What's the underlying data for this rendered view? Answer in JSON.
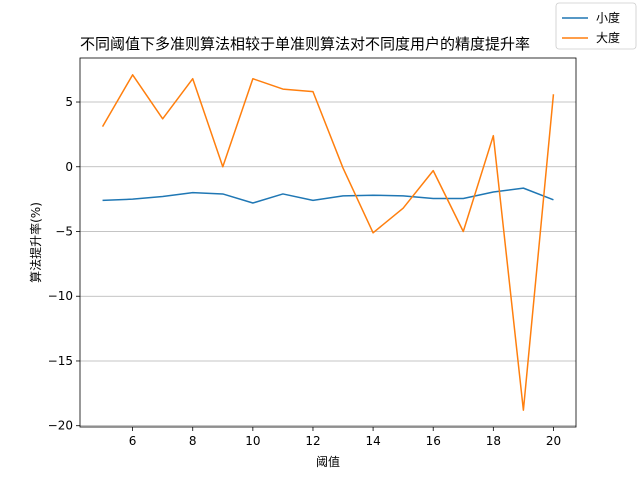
{
  "chart_data": {
    "type": "line",
    "title": "不同阈值下多准则算法相较于单准则算法对不同度用户的精度提升率",
    "xlabel": "阈值",
    "ylabel": "算法提升率(%)",
    "x": [
      5,
      6,
      7,
      8,
      9,
      10,
      11,
      12,
      13,
      14,
      15,
      16,
      17,
      18,
      19,
      20
    ],
    "xlim": [
      4.25,
      20.75
    ],
    "ylim": [
      -20.1,
      8.4
    ],
    "xticks": [
      6,
      8,
      10,
      12,
      14,
      16,
      18,
      20
    ],
    "yticks": [
      -20,
      -15,
      -10,
      -5,
      0,
      5
    ],
    "grid": "horizontal",
    "legend_position": "top-right",
    "series": [
      {
        "name": "小度",
        "color": "#1f77b4",
        "values": [
          -2.6,
          -2.5,
          -2.3,
          -2.0,
          -2.1,
          -2.8,
          -2.1,
          -2.6,
          -2.25,
          -2.2,
          -2.25,
          -2.45,
          -2.45,
          -1.95,
          -1.65,
          -2.55
        ]
      },
      {
        "name": "大度",
        "color": "#ff7f0e",
        "values": [
          3.1,
          7.1,
          3.7,
          6.8,
          0.0,
          6.8,
          6.0,
          5.8,
          -0.1,
          -5.1,
          -3.2,
          -0.3,
          -5.0,
          2.4,
          -18.8,
          5.6
        ]
      }
    ]
  }
}
